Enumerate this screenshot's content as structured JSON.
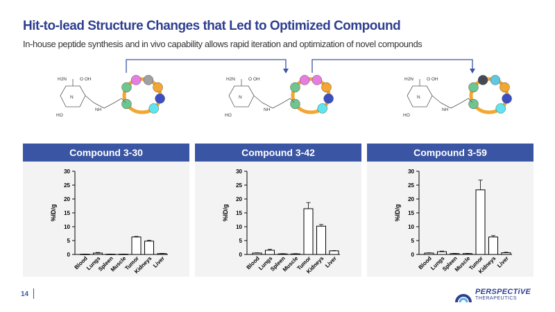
{
  "page": {
    "title": "Hit-to-lead Structure Changes that Led to Optimized Compound",
    "subtitle": "In-house peptide synthesis and in vivo capability allows rapid iteration and optimization of novel compounds",
    "page_number": "14"
  },
  "logo": {
    "name": "PERSPECTiVE",
    "sub": "THERAPEUTICS"
  },
  "structure_labels": {
    "amine": "H2N",
    "hydroxyl_top": "O OH",
    "hydroxyl_bottom": "HO",
    "nh": "NH",
    "n": "N"
  },
  "colors": {
    "header_bg": "#3a55a3",
    "title": "#2f3f8f",
    "ring": "#f4a632",
    "panel_bg": "#f3f3f3"
  },
  "compounds": [
    {
      "header": "Compound 3-30",
      "beads": [
        "#6fc58e",
        "#e57ee0",
        "#a0a0a0",
        "#f4a632",
        "#3b4fc2",
        "#5fe5f0",
        "#6fc58e"
      ]
    },
    {
      "header": "Compound 3-42",
      "beads": [
        "#6fc58e",
        "#e57ee0",
        "#e57ee0",
        "#f4a632",
        "#3b4fc2",
        "#5fe5f0",
        "#6fc58e"
      ]
    },
    {
      "header": "Compound 3-59",
      "beads": [
        "#6fc58e",
        "#444a55",
        "#5fc8e0",
        "#f4a632",
        "#3b4fc2",
        "#5fe5f0",
        "#6fc58e"
      ]
    }
  ],
  "chart_data": [
    {
      "type": "bar",
      "title": "Compound 3-30",
      "categories": [
        "Blood",
        "Lungs",
        "Spleen",
        "Muscle",
        "Tumor",
        "Kidneys",
        "Liver"
      ],
      "values": [
        0.1,
        0.5,
        0.1,
        0.1,
        6.3,
        4.8,
        0.3
      ],
      "errors": [
        0.05,
        0.2,
        0.05,
        0.05,
        0.2,
        0.3,
        0.1
      ],
      "ylabel": "%ID/g",
      "ylim": [
        0,
        30
      ],
      "yticks": [
        "0",
        "5",
        "10",
        "15",
        "20",
        "25",
        "30"
      ]
    },
    {
      "type": "bar",
      "title": "Compound 3-42",
      "categories": [
        "Blood",
        "Lungs",
        "Spleen",
        "Muscle",
        "Tumor",
        "Kidneys",
        "Liver"
      ],
      "values": [
        0.5,
        1.5,
        0.2,
        0.2,
        16.5,
        10.2,
        1.3
      ],
      "errors": [
        0.1,
        0.4,
        0.1,
        0.1,
        2.2,
        0.6,
        0.1
      ],
      "ylabel": "%ID/g",
      "ylim": [
        0,
        30
      ],
      "yticks": [
        "0",
        "5",
        "10",
        "15",
        "20",
        "25",
        "30"
      ]
    },
    {
      "type": "bar",
      "title": "Compound 3-59",
      "categories": [
        "Blood",
        "Lungs",
        "Spleen",
        "Muscle",
        "Tumor",
        "Kidneys",
        "Liver"
      ],
      "values": [
        0.5,
        1.0,
        0.3,
        0.3,
        23.3,
        6.3,
        0.6
      ],
      "errors": [
        0.1,
        0.2,
        0.1,
        0.1,
        3.5,
        0.5,
        0.2
      ],
      "ylabel": "%ID/g",
      "ylim": [
        0,
        30
      ],
      "yticks": [
        "0",
        "5",
        "10",
        "15",
        "20",
        "25",
        "30"
      ]
    }
  ]
}
